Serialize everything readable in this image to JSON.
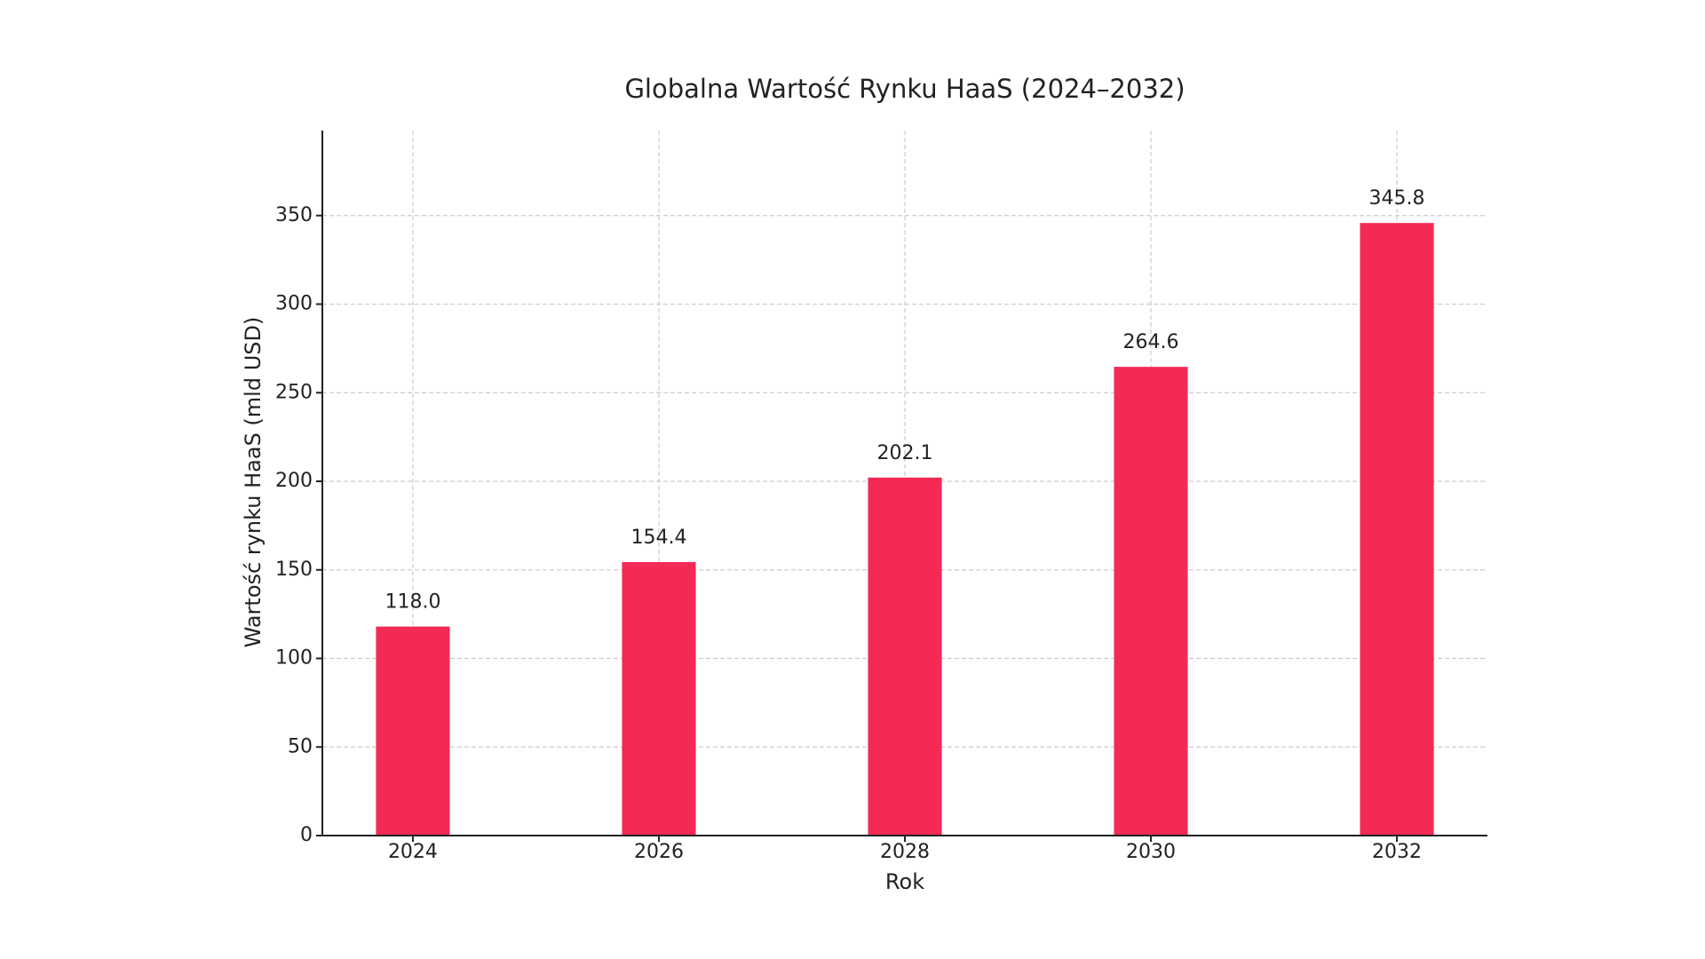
{
  "chart_data": {
    "type": "bar",
    "title": "Globalna Wartość Rynku HaaS (2024–2032)",
    "x_label": "Rok",
    "y_label": "Wartość rynku HaaS (mld USD)",
    "categories": [
      "2024",
      "2026",
      "2028",
      "2030",
      "2032"
    ],
    "values": [
      118.0,
      154.4,
      202.1,
      264.6,
      345.8
    ],
    "value_labels": [
      "118.0",
      "154.4",
      "202.1",
      "264.6",
      "345.8"
    ],
    "color": "#f42a56",
    "ylim": [
      0,
      398
    ],
    "yticks": [
      0,
      50,
      100,
      150,
      200,
      250,
      300,
      350
    ],
    "grid": true
  }
}
